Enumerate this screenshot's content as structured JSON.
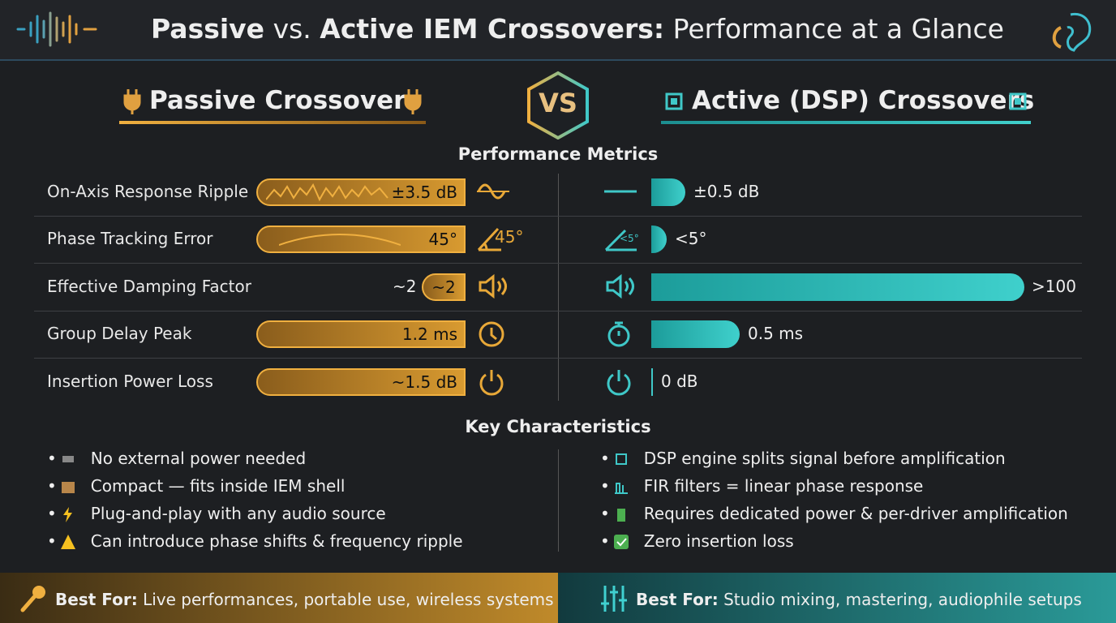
{
  "header": {
    "title_bold_1": "Passive",
    "title_mid": "vs.",
    "title_bold_2": "Active IEM Crossovers:",
    "title_rest": "Performance at a Glance"
  },
  "columns": {
    "passive": "Passive Crossovers",
    "vs": "VS",
    "active": "Active (DSP) Crossovers"
  },
  "metrics": {
    "heading": "Performance Metrics",
    "rows": [
      {
        "label": "On-Axis Response Ripple",
        "passive": "±3.5 dB",
        "active": "±0.5 dB"
      },
      {
        "label": "Phase Tracking Error",
        "passive": "45°",
        "active": "<5°"
      },
      {
        "label": "Effective Damping Factor",
        "passive": "~2",
        "active": ">100"
      },
      {
        "label": "Group Delay Peak",
        "passive": "1.2 ms",
        "active": "0.5 ms"
      },
      {
        "label": "Insertion Power Loss",
        "passive": "~1.5 dB",
        "active": "0 dB"
      }
    ]
  },
  "characteristics": {
    "heading": "Key Characteristics",
    "passive": [
      "No external power needed",
      "Compact — fits inside IEM shell",
      "Plug-and-play with any audio source",
      "Can introduce phase shifts & frequency ripple"
    ],
    "active": [
      "DSP engine splits signal before amplification",
      "FIR filters = linear phase response",
      "Requires dedicated power & per-driver amplification",
      "Zero insertion loss"
    ]
  },
  "footer": {
    "passive_label": "Best For:",
    "passive_text": "Live performances, portable use, wireless systems",
    "active_label": "Best For:",
    "active_text": "Studio mixing, mastering, audiophile setups"
  }
}
